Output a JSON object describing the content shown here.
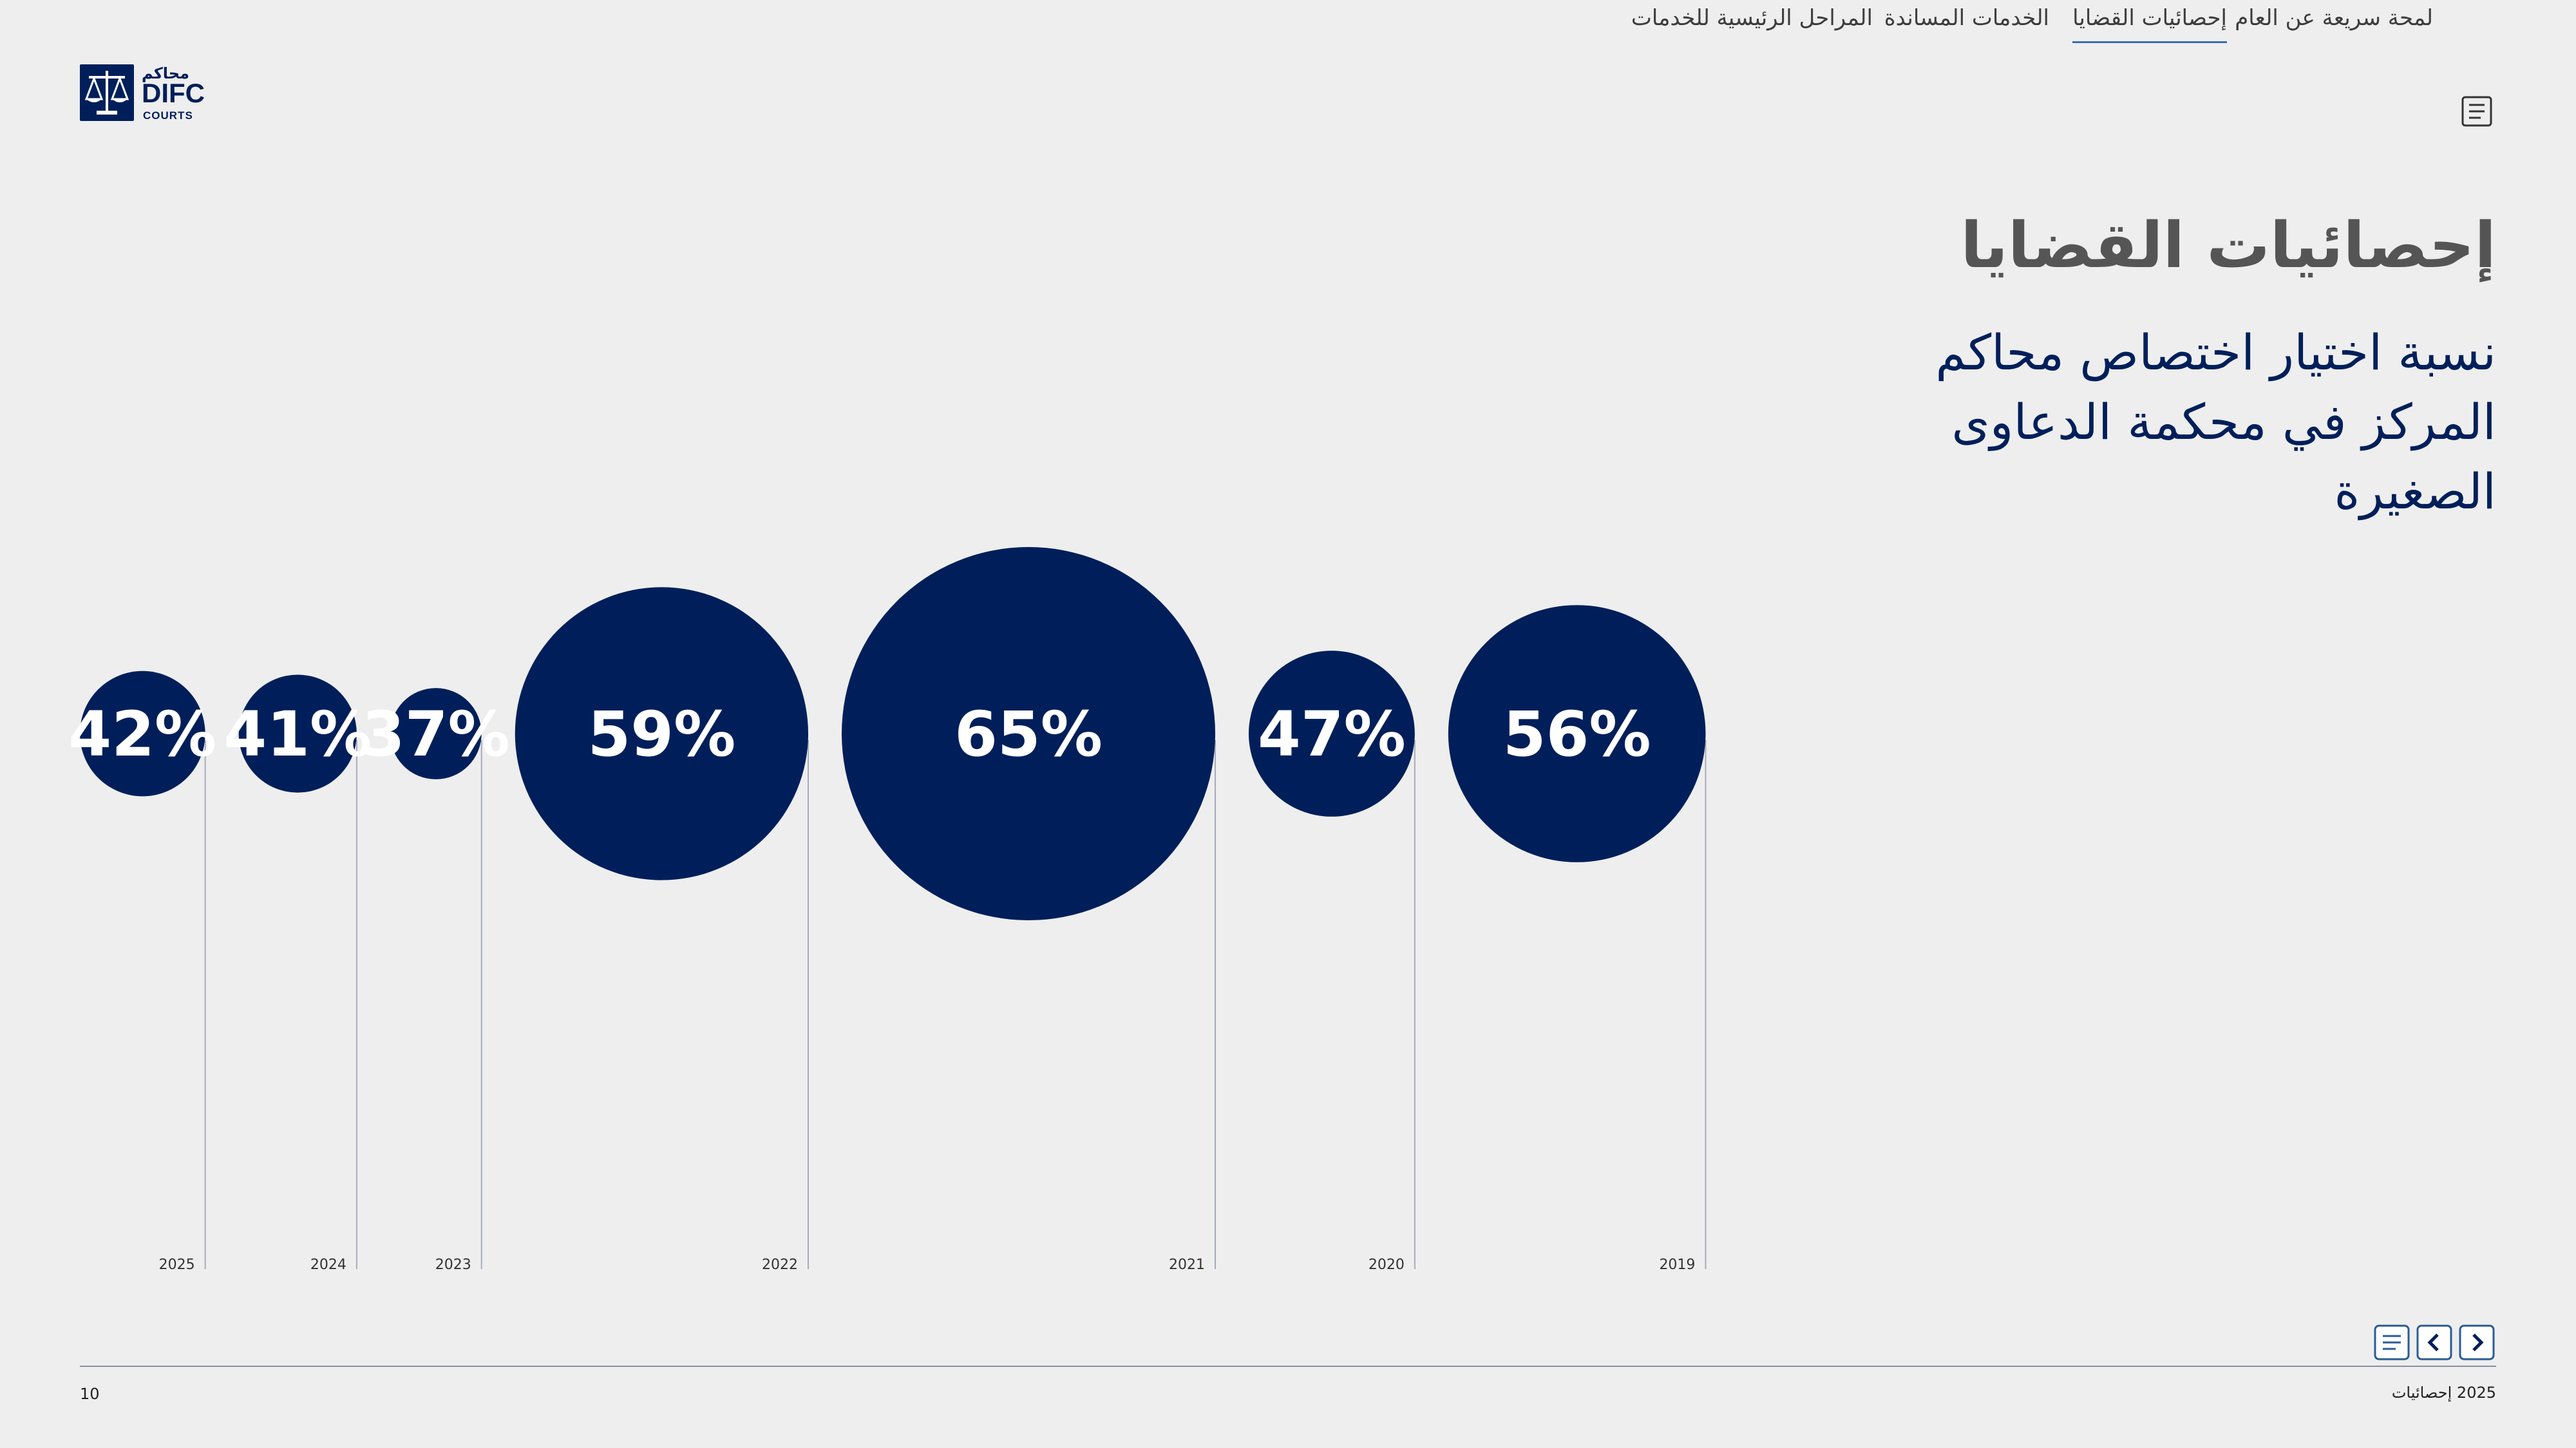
{
  "logo": {
    "arabic": "محاكم",
    "difc": "DIFC",
    "courts": "COURTS"
  },
  "nav": {
    "items": [
      {
        "label": "لمحة سريعة عن العام",
        "active": false
      },
      {
        "label": "إحصائيات القضايا",
        "active": true
      },
      {
        "label": "الخدمات المساندة",
        "active": false
      },
      {
        "label": "المراحل الرئيسية للخدمات",
        "active": false
      }
    ],
    "menu_icon": "list-menu-icon"
  },
  "page": {
    "title": "إحصائيات القضايا",
    "subtitle": "نسبة اختيار اختصاص محاكم المركز في محكمة الدعاوى الصغيرة"
  },
  "chart_data": {
    "type": "bubble",
    "categories": [
      "2025",
      "2024",
      "2023",
      "2022",
      "2021",
      "2020",
      "2019"
    ],
    "values": [
      42,
      41,
      37,
      59,
      65,
      47,
      56
    ],
    "value_labels": [
      "42%",
      "41%",
      "37%",
      "59%",
      "65%",
      "47%",
      "56%"
    ],
    "unit": "%",
    "bubble_color": "#001f5a",
    "label_color": "#ffffff",
    "grid": false,
    "legend": "none"
  },
  "pager": {
    "prev_icon": "chevron-left-icon",
    "next_icon": "chevron-right-icon",
    "menu_icon": "list-menu-icon"
  },
  "footer": {
    "page_number": "10",
    "label": "2025 إحصائيات"
  }
}
